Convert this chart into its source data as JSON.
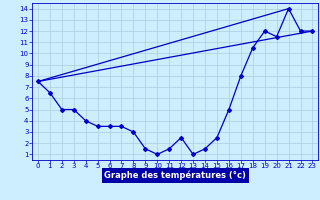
{
  "xlabel": "Graphe des températures (°c)",
  "bg_color": "#cceeff",
  "line_color": "#0000cc",
  "grid_color": "#aaccdd",
  "xlim": [
    -0.5,
    23.5
  ],
  "ylim": [
    0.5,
    14.5
  ],
  "xticks": [
    0,
    1,
    2,
    3,
    4,
    5,
    6,
    7,
    8,
    9,
    10,
    11,
    12,
    13,
    14,
    15,
    16,
    17,
    18,
    19,
    20,
    21,
    22,
    23
  ],
  "yticks": [
    1,
    2,
    3,
    4,
    5,
    6,
    7,
    8,
    9,
    10,
    11,
    12,
    13,
    14
  ],
  "temp_hours": [
    0,
    1,
    2,
    3,
    4,
    5,
    6,
    7,
    8,
    9,
    10,
    11,
    12,
    13,
    14,
    15,
    16,
    17,
    18,
    19,
    20,
    21,
    22,
    23
  ],
  "temp_values": [
    7.5,
    6.5,
    5.0,
    5.0,
    4.0,
    3.5,
    3.5,
    3.5,
    3.0,
    1.5,
    1.0,
    1.5,
    2.5,
    1.0,
    1.5,
    2.5,
    5.0,
    8.0,
    10.5,
    12.0,
    11.5,
    14.0,
    12.0,
    12.0
  ],
  "line1_x": [
    0,
    21
  ],
  "line1_y": [
    7.5,
    14.0
  ],
  "line2_x": [
    0,
    23
  ],
  "line2_y": [
    7.5,
    12.0
  ],
  "xlabel_bg": "#0000aa",
  "xlabel_fg": "#ffffff",
  "tick_labelsize": 5.0,
  "xlabel_fontsize": 6.0
}
